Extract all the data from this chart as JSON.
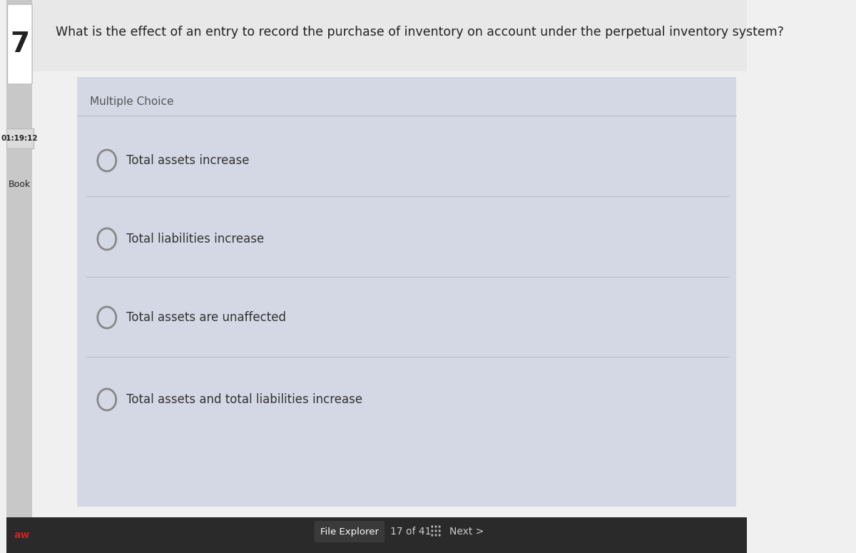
{
  "question_number": "7",
  "timer": "01:19:12",
  "side_label": "Book",
  "bottom_left_label": "aw",
  "question_text": "What is the effect of an entry to record the purchase of inventory on account under the perpetual inventory system?",
  "question_type": "Multiple Choice",
  "choices": [
    "Total assets increase",
    "Total liabilities increase",
    "Total assets are unaffected",
    "Total assets and total liabilities increase"
  ],
  "footer_text": "17 of 41",
  "footer_button": "File Explorer",
  "footer_next": "Next >",
  "bg_main": "#f0f0f0",
  "bg_content": "#d4d8e4",
  "bg_header": "#e8e8e8",
  "bg_question_num_box": "#ffffff",
  "timer_bg": "#dcdcdc",
  "timer_border": "#bbbbbb",
  "footer_btn_bg": "#3a3a3a",
  "footer_btn_text": "#ffffff",
  "text_color": "#222222",
  "choice_text_color": "#333333",
  "multiple_choice_color": "#555555",
  "radio_color": "#888888",
  "side_bar_color": "#c8c8c8",
  "bottom_bar_color": "#2a2a2a",
  "bottom_label_color": "#cc2222",
  "separator_color": "#bbbfc8",
  "footer_text_color": "#cccccc",
  "grid_dot_color": "#aaaaaa"
}
